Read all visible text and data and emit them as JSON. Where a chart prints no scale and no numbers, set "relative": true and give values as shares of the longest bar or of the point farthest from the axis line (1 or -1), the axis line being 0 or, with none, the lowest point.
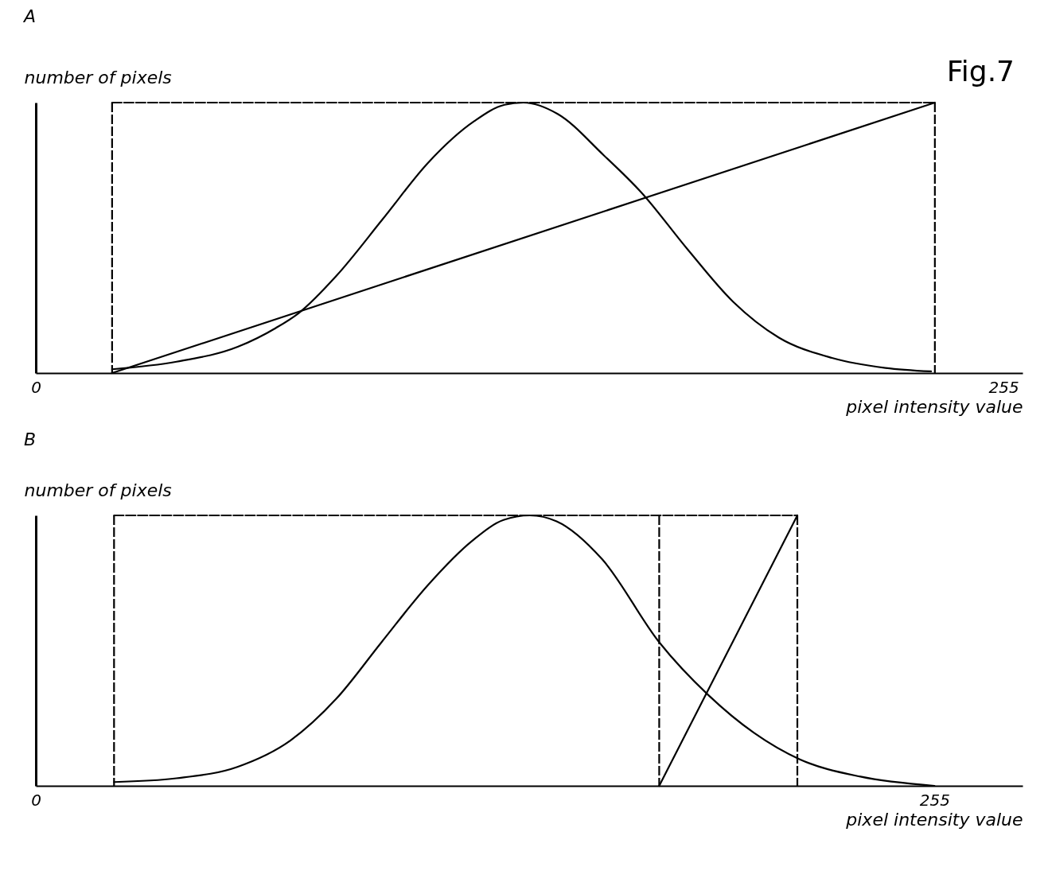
{
  "chart_data": [
    {
      "type": "line",
      "title": "A",
      "ylabel": "number of pixels",
      "xlabel": "pixel intensity value",
      "relative": true,
      "xlim": [
        0,
        260
      ],
      "xticks": [
        0,
        255
      ],
      "grid": false,
      "marker": "none",
      "annotations": [
        "Fig.7"
      ],
      "series": [
        {
          "color": "#000000",
          "line_style": "solid",
          "x": [
            20.1,
            37.1,
            53.2,
            63.3,
            69.3,
            79.3,
            91.4,
            103.4,
            115.5,
            123.5,
            128.5,
            137.5,
            149.6,
            159.6,
            171.7,
            183.7,
            195.8,
            209.8,
            223.9,
            235.9
          ],
          "values": [
            0.014,
            0.042,
            0.097,
            0.167,
            0.222,
            0.361,
            0.569,
            0.778,
            0.931,
            0.992,
            1.0,
            0.958,
            0.806,
            0.667,
            0.458,
            0.264,
            0.131,
            0.056,
            0.019,
            0.006
          ]
        },
        {
          "color": "#000000",
          "line_style": "solid",
          "x": [
            20.1,
            236.9
          ],
          "values": [
            0,
            1.0
          ]
        },
        {
          "color": "#000000",
          "line_style": "dashed",
          "x": [
            20.1,
            236.9
          ],
          "values": [
            1.0,
            1.0
          ]
        }
      ],
      "ref_lines": [
        {
          "axis": "x",
          "value": 20.1,
          "color": "#000000",
          "line_style": "dashed"
        },
        {
          "axis": "x",
          "value": 236.9,
          "color": "#000000",
          "line_style": "dashed"
        }
      ]
    },
    {
      "type": "line",
      "title": "B",
      "ylabel": "number of pixels",
      "xlabel": "pixel intensity value",
      "relative": true,
      "xlim": [
        0,
        280
      ],
      "xticks": [
        0,
        255
      ],
      "grid": false,
      "marker": "none",
      "series": [
        {
          "color": "#000000",
          "line_style": "solid",
          "x": [
            22.2,
            39.9,
            57.2,
            72.3,
            85.2,
            98.1,
            111.1,
            124.0,
            132.7,
            140.2,
            147.8,
            160.7,
            176.9,
            190.9,
            203.8,
            216.8,
            234.0,
            255
          ],
          "values": [
            0.014,
            0.028,
            0.07,
            0.168,
            0.321,
            0.531,
            0.74,
            0.908,
            0.983,
            1.0,
            0.978,
            0.838,
            0.531,
            0.335,
            0.196,
            0.098,
            0.034,
            0
          ]
        },
        {
          "color": "#000000",
          "line_style": "solid",
          "x": [
            176.9,
            216.1
          ],
          "values": [
            0,
            1.0
          ]
        },
        {
          "color": "#000000",
          "line_style": "dashed",
          "x": [
            22.2,
            216.1
          ],
          "values": [
            1.0,
            1.0
          ]
        }
      ],
      "ref_lines": [
        {
          "axis": "x",
          "value": 22.2,
          "color": "#000000",
          "line_style": "dashed"
        },
        {
          "axis": "x",
          "value": 176.9,
          "color": "#000000",
          "line_style": "dashed"
        },
        {
          "axis": "x",
          "value": 216.1,
          "color": "#000000",
          "line_style": "dashed"
        }
      ]
    }
  ]
}
